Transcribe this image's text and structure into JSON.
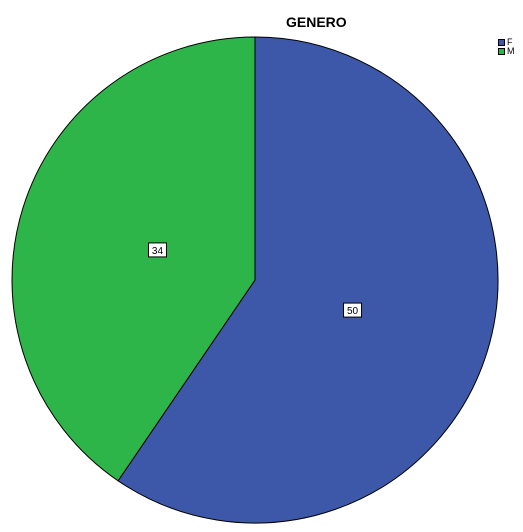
{
  "chart_data": {
    "type": "pie",
    "title": "GENERO",
    "slices": [
      {
        "label": "F",
        "value": 50,
        "color": "#3d58a8"
      },
      {
        "label": "M",
        "value": 34,
        "color": "#2db54a"
      }
    ],
    "legend_position": "top-right",
    "data_labels": true
  }
}
